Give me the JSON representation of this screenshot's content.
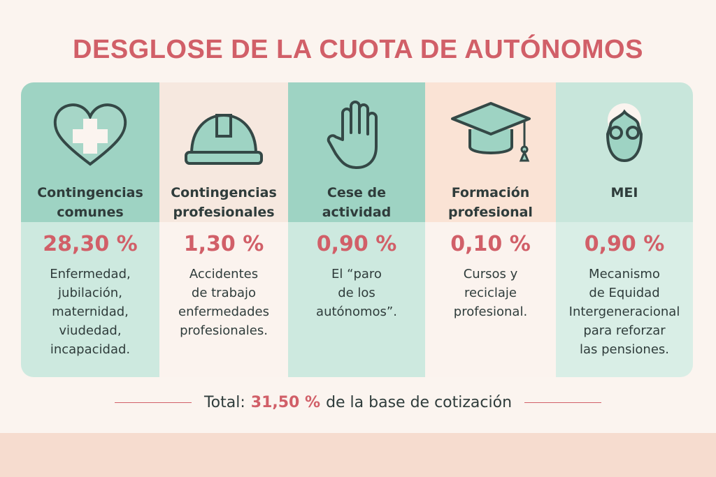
{
  "title": "DESGLOSE DE LA CUOTA DE AUTÓNOMOS",
  "columns": [
    {
      "icon": "heart-medical-cross-icon",
      "name": "Contingencias\ncomunes",
      "percent": "28,30 %",
      "description": "Enfermedad,\njubilación,\nmaternidad,\nviudedad,\nincapacidad.",
      "head_color": "#9ed3c3",
      "body_color": "#cde9df"
    },
    {
      "icon": "hard-hat-icon",
      "name": "Contingencias\nprofesionales",
      "percent": "1,30 %",
      "description": "Accidentes\nde trabajo\nenfermedades\nprofesionales.",
      "head_color": "#f6e8df",
      "body_color": "#fbf3ee"
    },
    {
      "icon": "raised-hand-icon",
      "name": "Cese de\nactividad",
      "percent": "0,90 %",
      "description": "El “paro\nde los\nautónomos”.",
      "head_color": "#9ed3c3",
      "body_color": "#cde9df"
    },
    {
      "icon": "graduation-cap-icon",
      "name": "Formación\nprofesional",
      "percent": "0,10 %",
      "description": "Cursos y\nreciclaje\nprofesional.",
      "head_color": "#fae3d5",
      "body_color": "#fbf3ee"
    },
    {
      "icon": "elderly-person-glasses-icon",
      "name": "MEI",
      "percent": "0,90 %",
      "description": "Mecanismo\nde Equidad\nIntergeneracional\npara reforzar\nlas pensiones.",
      "head_color": "#c8e6db",
      "body_color": "#d9eee6"
    }
  ],
  "total": {
    "label": "Total:",
    "value": "31,50 %",
    "suffix": "de la base de cotización"
  },
  "colors": {
    "accent": "#d15f68",
    "teal": "#9ed3c3",
    "ink": "#2f3c3b"
  }
}
